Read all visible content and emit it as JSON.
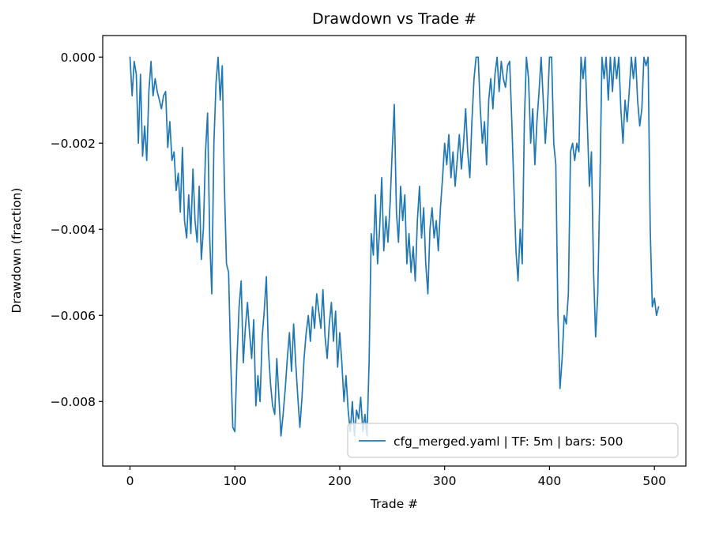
{
  "figure": {
    "background": "#ffffff"
  },
  "chart_data": {
    "type": "line",
    "title": "Drawdown vs Trade #",
    "xlabel": "Trade #",
    "ylabel": "Drawdown (fraction)",
    "xlim": [
      -26,
      530
    ],
    "ylim": [
      -0.0095,
      0.0005
    ],
    "xticks": [
      0,
      100,
      200,
      300,
      400,
      500
    ],
    "yticks": [
      0,
      -0.002,
      -0.004,
      -0.006,
      -0.008
    ],
    "ytick_labels": [
      "0.000",
      "−0.002",
      "−0.004",
      "−0.006",
      "−0.008"
    ],
    "grid": false,
    "legend": {
      "position": "lower right",
      "entries": [
        {
          "label": "cfg_merged.yaml | TF: 5m | bars: 500",
          "color": "#1f77b4"
        }
      ]
    },
    "series": [
      {
        "name": "cfg_merged.yaml | TF: 5m | bars: 500",
        "color": "#1f77b4",
        "x_start": 0,
        "x_step": 2,
        "y_scale": 0.0001,
        "y_1e4": [
          0,
          -9,
          -1,
          -4,
          -20,
          -4,
          -23,
          -16,
          -24,
          -8,
          -1,
          -9,
          -5,
          -8,
          -10,
          -12,
          -9,
          -8,
          -21,
          -15,
          -24,
          -22,
          -31,
          -27,
          -36,
          -21,
          -38,
          -42,
          -32,
          -41,
          -26,
          -38,
          -43,
          -30,
          -47,
          -40,
          -22,
          -13,
          -42,
          -55,
          -20,
          -6,
          0,
          -10,
          -2,
          -30,
          -48,
          -50,
          -70,
          -86,
          -87,
          -70,
          -58,
          -52,
          -71,
          -63,
          -57,
          -64,
          -70,
          -61,
          -81,
          -74,
          -80,
          -65,
          -59,
          -51,
          -68,
          -76,
          -81,
          -83,
          -70,
          -79,
          -88,
          -83,
          -77,
          -70,
          -64,
          -73,
          -62,
          -71,
          -79,
          -86,
          -79,
          -70,
          -64,
          -60,
          -66,
          -58,
          -63,
          -55,
          -59,
          -63,
          -54,
          -65,
          -70,
          -62,
          -57,
          -66,
          -59,
          -72,
          -64,
          -71,
          -80,
          -74,
          -82,
          -87,
          -80,
          -88,
          -82,
          -84,
          -79,
          -87,
          -83,
          -88,
          -71,
          -41,
          -46,
          -32,
          -48,
          -40,
          -28,
          -45,
          -37,
          -43,
          -34,
          -22,
          -11,
          -36,
          -43,
          -30,
          -38,
          -32,
          -48,
          -41,
          -50,
          -44,
          -52,
          -38,
          -30,
          -42,
          -35,
          -48,
          -55,
          -40,
          -35,
          -42,
          -38,
          -45,
          -35,
          -28,
          -20,
          -25,
          -18,
          -28,
          -22,
          -30,
          -24,
          -18,
          -26,
          -20,
          -12,
          -22,
          -28,
          -15,
          -5,
          0,
          0,
          -12,
          -20,
          -15,
          -25,
          -10,
          -5,
          -12,
          -4,
          0,
          -8,
          -1,
          -5,
          -7,
          -2,
          -1,
          -15,
          -30,
          -45,
          -52,
          -40,
          -48,
          -15,
          0,
          -5,
          -20,
          -12,
          -25,
          -15,
          -8,
          0,
          -10,
          -20,
          -12,
          0,
          0,
          -20,
          -25,
          -60,
          -77,
          -70,
          -60,
          -62,
          -55,
          -22,
          -20,
          -24,
          -20,
          -22,
          0,
          -5,
          0,
          -15,
          -30,
          -22,
          -50,
          -65,
          -55,
          -30,
          0,
          -5,
          0,
          -10,
          0,
          -8,
          0,
          -5,
          0,
          -12,
          -20,
          -10,
          -15,
          -8,
          0,
          -5,
          0,
          -10,
          -16,
          -12,
          0,
          -2,
          0,
          -40,
          -58,
          -56,
          -60,
          -58
        ]
      }
    ]
  }
}
